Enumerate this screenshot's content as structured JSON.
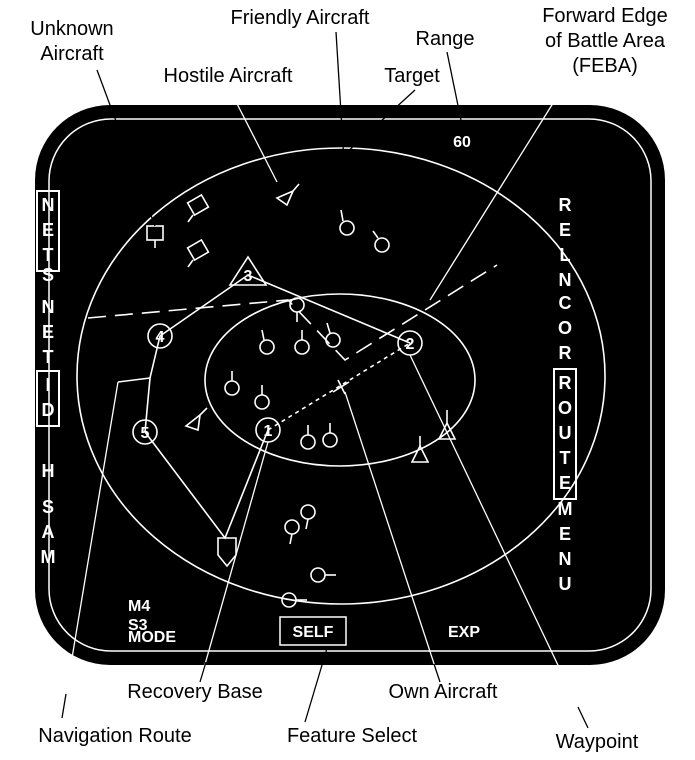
{
  "callouts": [
    [
      "Unknown",
      "Aircraft"
    ],
    [
      "Friendly Aircraft"
    ],
    [
      "Range"
    ],
    [
      "Forward Edge",
      "of Battle Area",
      "(FEBA)"
    ],
    [
      "Hostile Aircraft"
    ],
    [
      "Target"
    ],
    [
      "Recovery Base"
    ],
    [
      "Own Aircraft"
    ],
    [
      "Navigation Route"
    ],
    [
      "Feature Select"
    ],
    [
      "Waypoint"
    ]
  ],
  "range": 60,
  "waypoints": [
    1,
    2,
    3,
    4,
    5
  ],
  "side_labels": {
    "left": [
      {
        "text": "NET",
        "boxed": true
      },
      {
        "text": "S",
        "boxed": false
      },
      {
        "text": "NET",
        "boxed": false
      },
      {
        "text": "ID",
        "boxed": true
      },
      {
        "text": "H",
        "boxed": false
      },
      {
        "text": "SAM",
        "boxed": false
      }
    ],
    "right": [
      {
        "text": "RELN",
        "boxed": false
      },
      {
        "text": "COR",
        "boxed": false
      },
      {
        "text": "ROUTE",
        "boxed": true
      },
      {
        "text": "MENU",
        "boxed": false
      }
    ]
  },
  "bottom_labels": {
    "mode_lines": [
      "M4",
      "S3",
      "MODE"
    ],
    "select": "SELF",
    "exp": "EXP"
  }
}
